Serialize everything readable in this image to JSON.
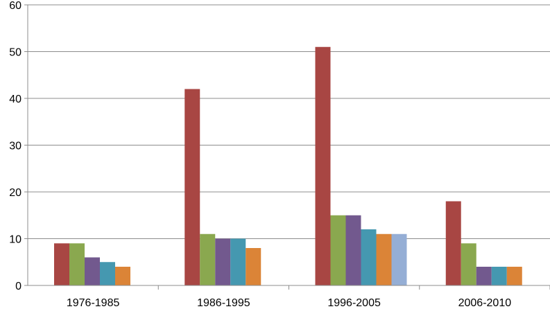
{
  "chart_data": {
    "type": "bar",
    "title": "",
    "xlabel": "",
    "ylabel": "",
    "ylim": [
      0,
      60
    ],
    "yticks": [
      0,
      10,
      20,
      30,
      40,
      50,
      60
    ],
    "grid": true,
    "legend": "none",
    "categories": [
      "1976-1985",
      "1986-1995",
      "1996-2005",
      "2006-2010"
    ],
    "series": [
      {
        "color": "#a84643",
        "values": [
          9,
          42,
          51,
          18
        ]
      },
      {
        "color": "#8aa84f",
        "values": [
          9,
          11,
          15,
          9
        ]
      },
      {
        "color": "#72598e",
        "values": [
          6,
          10,
          15,
          4
        ]
      },
      {
        "color": "#4598b0",
        "values": [
          5,
          10,
          12,
          4
        ]
      },
      {
        "color": "#db8437",
        "values": [
          4,
          8,
          11,
          4
        ]
      },
      {
        "color": "#95aed5",
        "values": [
          null,
          null,
          11,
          null
        ]
      }
    ]
  }
}
